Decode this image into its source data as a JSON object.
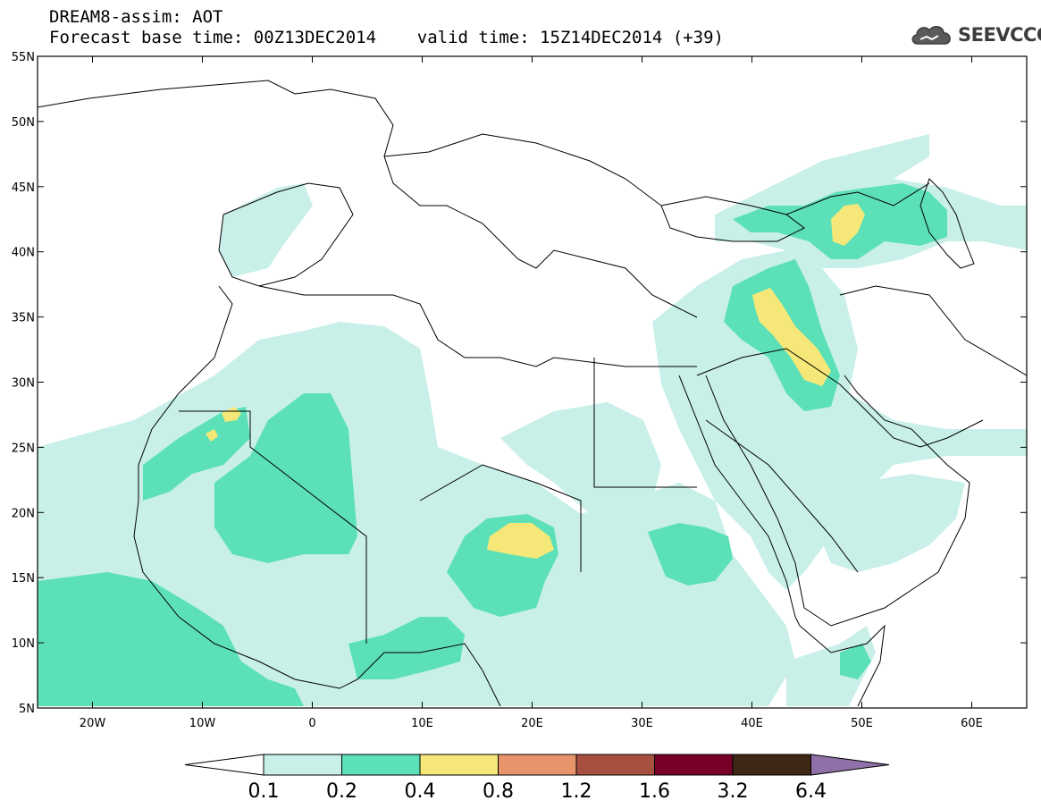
{
  "header": {
    "title": "DREAM8-assim: AOT",
    "subtitle": "Forecast base time: 00Z13DEC2014    valid time: 15Z14DEC2014 (+39)",
    "logo_text": "SEEVCCC"
  },
  "map": {
    "lon_range": [
      -25,
      65
    ],
    "lat_range": [
      5,
      55
    ],
    "lat_ticks": [
      "55N",
      "50N",
      "45N",
      "40N",
      "35N",
      "30N",
      "25N",
      "20N",
      "15N",
      "10N",
      "5N"
    ],
    "lon_ticks": [
      "20W",
      "10W",
      "0",
      "10E",
      "20E",
      "30E",
      "40E",
      "50E",
      "60E"
    ],
    "coastline_color": "#000000"
  },
  "colorbar": {
    "colors": [
      "#ffffff",
      "#c8f0e8",
      "#5ce0b8",
      "#f5e878",
      "#e8946a",
      "#a85040",
      "#780028",
      "#3c2814",
      "#9070a8"
    ],
    "labels": [
      "0.1",
      "0.2",
      "0.4",
      "0.8",
      "1.2",
      "1.6",
      "3.2",
      "6.4"
    ]
  }
}
